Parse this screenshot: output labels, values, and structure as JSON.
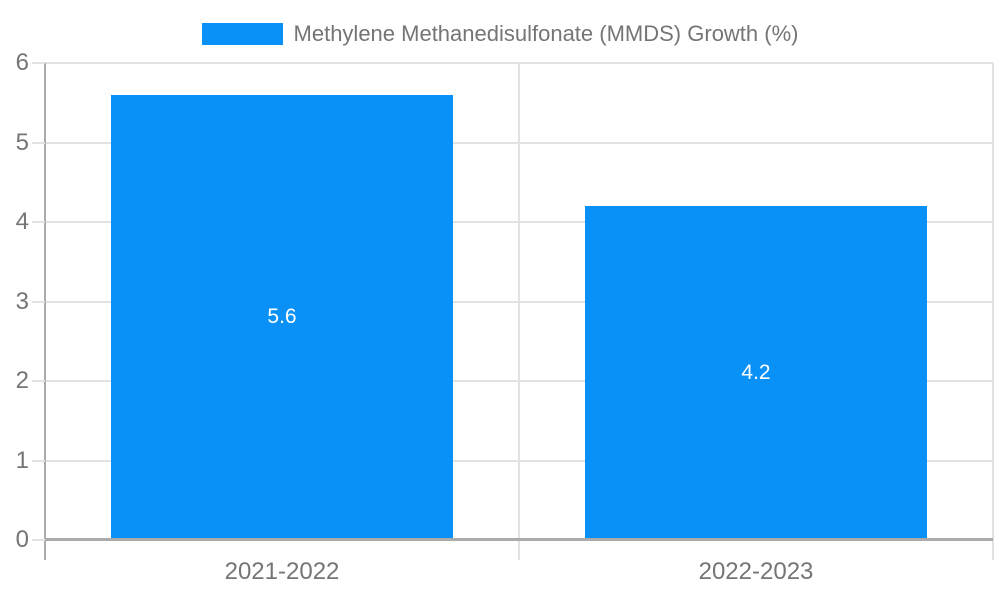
{
  "legend": {
    "label": "Methylene Methanedisulfonate (MMDS) Growth (%)"
  },
  "chart_data": {
    "type": "bar",
    "categories": [
      "2021-2022",
      "2022-2023"
    ],
    "values": [
      5.6,
      4.2
    ],
    "bar_labels": [
      "5.6",
      "4.2"
    ],
    "series_name": "Methylene Methanedisulfonate (MMDS) Growth (%)",
    "title": "",
    "xlabel": "",
    "ylabel": "",
    "ylim": [
      0,
      6
    ],
    "yticks": [
      0,
      1,
      2,
      3,
      4,
      5,
      6
    ],
    "grid": true,
    "legend_position": "top-center"
  },
  "colors": {
    "bar": "#0991f8",
    "grid": "#e2e2e2",
    "axis": "#ababab",
    "text": "#757575",
    "value_text": "#ffffff"
  }
}
